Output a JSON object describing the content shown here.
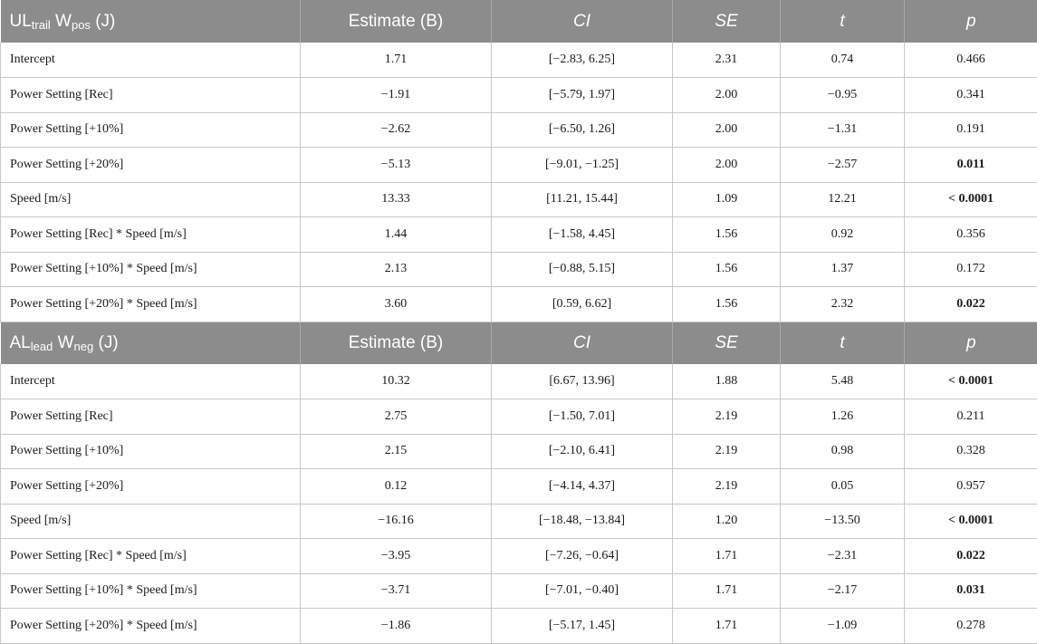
{
  "sections": [
    {
      "header": {
        "label_main": "UL",
        "label_sub": "trail",
        "label_mid": " W",
        "label_sub2": "pos",
        "label_tail": " (J)",
        "estimate": "Estimate (B)",
        "ci": "CI",
        "se": "SE",
        "t": "t",
        "p": "p"
      },
      "rows": [
        {
          "term": "Intercept",
          "estimate": "1.71",
          "ci": "[−2.83, 6.25]",
          "se": "2.31",
          "t": "0.74",
          "p": "0.466",
          "significant": false
        },
        {
          "term": "Power Setting [Rec]",
          "estimate": "−1.91",
          "ci": "[−5.79, 1.97]",
          "se": "2.00",
          "t": "−0.95",
          "p": "0.341",
          "significant": false
        },
        {
          "term": "Power Setting [+10%]",
          "estimate": "−2.62",
          "ci": "[−6.50, 1.26]",
          "se": "2.00",
          "t": "−1.31",
          "p": "0.191",
          "significant": false
        },
        {
          "term": "Power Setting [+20%]",
          "estimate": "−5.13",
          "ci": "[−9.01, −1.25]",
          "se": "2.00",
          "t": "−2.57",
          "p": "0.011",
          "significant": true
        },
        {
          "term": "Speed [m/s]",
          "estimate": "13.33",
          "ci": "[11.21, 15.44]",
          "se": "1.09",
          "t": "12.21",
          "p": "< 0.0001",
          "significant": true
        },
        {
          "term": "Power Setting [Rec] * Speed [m/s]",
          "estimate": "1.44",
          "ci": "[−1.58, 4.45]",
          "se": "1.56",
          "t": "0.92",
          "p": "0.356",
          "significant": false
        },
        {
          "term": "Power Setting [+10%] * Speed [m/s]",
          "estimate": "2.13",
          "ci": "[−0.88, 5.15]",
          "se": "1.56",
          "t": "1.37",
          "p": "0.172",
          "significant": false
        },
        {
          "term": "Power Setting [+20%] * Speed [m/s]",
          "estimate": "3.60",
          "ci": "[0.59, 6.62]",
          "se": "1.56",
          "t": "2.32",
          "p": "0.022",
          "significant": true
        }
      ]
    },
    {
      "header": {
        "label_main": "AL",
        "label_sub": "lead",
        "label_mid": " W",
        "label_sub2": "neg",
        "label_tail": " (J)",
        "estimate": "Estimate (B)",
        "ci": "CI",
        "se": "SE",
        "t": "t",
        "p": "p"
      },
      "rows": [
        {
          "term": "Intercept",
          "estimate": "10.32",
          "ci": "[6.67, 13.96]",
          "se": "1.88",
          "t": "5.48",
          "p": "< 0.0001",
          "significant": true
        },
        {
          "term": "Power Setting [Rec]",
          "estimate": "2.75",
          "ci": "[−1.50, 7.01]",
          "se": "2.19",
          "t": "1.26",
          "p": "0.211",
          "significant": false
        },
        {
          "term": "Power Setting [+10%]",
          "estimate": "2.15",
          "ci": "[−2.10, 6.41]",
          "se": "2.19",
          "t": "0.98",
          "p": "0.328",
          "significant": false
        },
        {
          "term": "Power Setting [+20%]",
          "estimate": "0.12",
          "ci": "[−4.14, 4.37]",
          "se": "2.19",
          "t": "0.05",
          "p": "0.957",
          "significant": false
        },
        {
          "term": "Speed [m/s]",
          "estimate": "−16.16",
          "ci": "[−18.48, −13.84]",
          "se": "1.20",
          "t": "−13.50",
          "p": "< 0.0001",
          "significant": true
        },
        {
          "term": "Power Setting [Rec] * Speed [m/s]",
          "estimate": "−3.95",
          "ci": "[−7.26, −0.64]",
          "se": "1.71",
          "t": "−2.31",
          "p": "0.022",
          "significant": true
        },
        {
          "term": "Power Setting [+10%] * Speed [m/s]",
          "estimate": "−3.71",
          "ci": "[−7.01, −0.40]",
          "se": "1.71",
          "t": "−2.17",
          "p": "0.031",
          "significant": true
        },
        {
          "term": "Power Setting [+20%] * Speed [m/s]",
          "estimate": "−1.86",
          "ci": "[−5.17, 1.45]",
          "se": "1.71",
          "t": "−1.09",
          "p": "0.278",
          "significant": false
        }
      ]
    }
  ],
  "colors": {
    "header_bg": "#8c8c8c",
    "header_text": "#ffffff",
    "grid": "#c8c8c8"
  }
}
